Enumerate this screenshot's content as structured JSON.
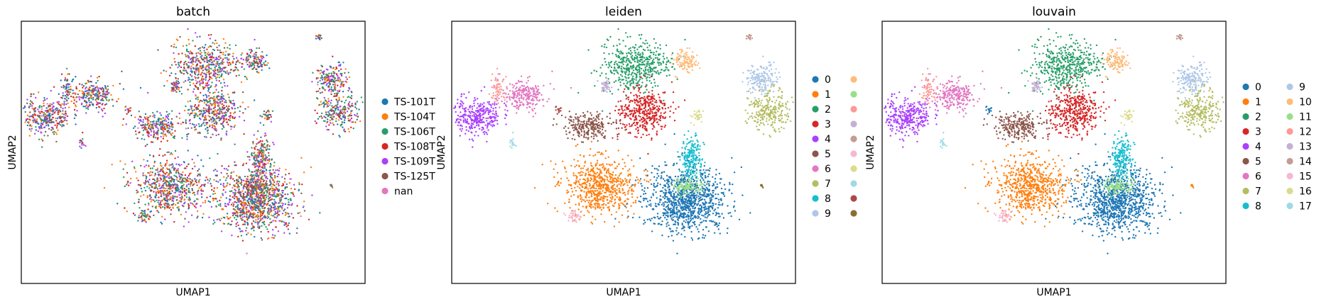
{
  "chart_data": [
    {
      "type": "scatter",
      "title": "batch",
      "xlabel": "UMAP1",
      "ylabel": "UMAP2",
      "grid": false,
      "legend_position": "right",
      "legend_columns": 1,
      "categories": [
        {
          "name": "TS-101T",
          "color": "#1f77b4"
        },
        {
          "name": "TS-104T",
          "color": "#ff7f0e"
        },
        {
          "name": "TS-106T",
          "color": "#279e68"
        },
        {
          "name": "TS-108T",
          "color": "#d62728"
        },
        {
          "name": "TS-109T",
          "color": "#aa40fc"
        },
        {
          "name": "TS-125T",
          "color": "#8c564b"
        },
        {
          "name": "nan",
          "color": "#e377c2"
        }
      ]
    },
    {
      "type": "scatter",
      "title": "leiden",
      "xlabel": "UMAP1",
      "ylabel": "UMAP2",
      "grid": false,
      "legend_position": "right",
      "legend_columns": 2,
      "categories": [
        {
          "name": "0",
          "color": "#1f77b4"
        },
        {
          "name": "1",
          "color": "#ff7f0e"
        },
        {
          "name": "2",
          "color": "#279e68"
        },
        {
          "name": "3",
          "color": "#d62728"
        },
        {
          "name": "4",
          "color": "#aa40fc"
        },
        {
          "name": "5",
          "color": "#8c564b"
        },
        {
          "name": "6",
          "color": "#e377c2"
        },
        {
          "name": "7",
          "color": "#b5bd61"
        },
        {
          "name": "8",
          "color": "#17becf"
        },
        {
          "name": "9",
          "color": "#aec7e8"
        },
        {
          "name": "",
          "color": "#ffbb78"
        },
        {
          "name": "",
          "color": "#98df8a"
        },
        {
          "name": "",
          "color": "#ff9896"
        },
        {
          "name": "",
          "color": "#c5b0d5"
        },
        {
          "name": "",
          "color": "#c49c94"
        },
        {
          "name": "",
          "color": "#f7b6d2"
        },
        {
          "name": "",
          "color": "#dbdb8d"
        },
        {
          "name": "",
          "color": "#9edae5"
        },
        {
          "name": "",
          "color": "#ad494a"
        },
        {
          "name": "",
          "color": "#8c6d31"
        }
      ]
    },
    {
      "type": "scatter",
      "title": "louvain",
      "xlabel": "UMAP1",
      "ylabel": "UMAP2",
      "grid": false,
      "legend_position": "right",
      "legend_columns": 2,
      "categories": [
        {
          "name": "0",
          "color": "#1f77b4"
        },
        {
          "name": "1",
          "color": "#ff7f0e"
        },
        {
          "name": "2",
          "color": "#279e68"
        },
        {
          "name": "3",
          "color": "#d62728"
        },
        {
          "name": "4",
          "color": "#aa40fc"
        },
        {
          "name": "5",
          "color": "#8c564b"
        },
        {
          "name": "6",
          "color": "#e377c2"
        },
        {
          "name": "7",
          "color": "#b5bd61"
        },
        {
          "name": "8",
          "color": "#17becf"
        },
        {
          "name": "9",
          "color": "#aec7e8"
        },
        {
          "name": "10",
          "color": "#ffbb78"
        },
        {
          "name": "11",
          "color": "#98df8a"
        },
        {
          "name": "12",
          "color": "#ff9896"
        },
        {
          "name": "13",
          "color": "#c5b0d5"
        },
        {
          "name": "14",
          "color": "#c49c94"
        },
        {
          "name": "15",
          "color": "#f7b6d2"
        },
        {
          "name": "16",
          "color": "#dbdb8d"
        },
        {
          "name": "17",
          "color": "#9edae5"
        }
      ]
    }
  ]
}
